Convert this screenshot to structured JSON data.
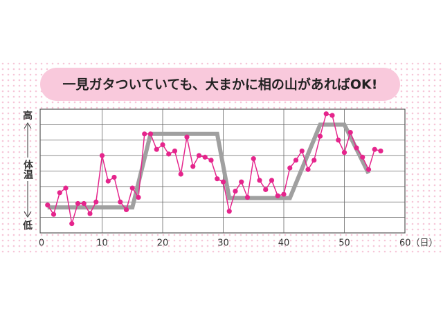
{
  "chart_data": {
    "type": "line",
    "title": "一見ガタついていても、大まかに相の山があればOK!",
    "y_label": "体温",
    "xlim": [
      0,
      60
    ],
    "xticks": [
      0,
      10,
      20,
      30,
      40,
      50,
      {
        "value": 60,
        "label": "60（日）"
      }
    ],
    "ylim": [
      0,
      8
    ],
    "yticks": [
      {
        "value": 8,
        "label": "高"
      },
      {
        "value": 0,
        "label": "低"
      }
    ],
    "ygrid": [
      1,
      2,
      3,
      4,
      5,
      6,
      7
    ],
    "grid": true,
    "series": [
      {
        "color": "#a0a0a0",
        "markers": false,
        "x": [
          1,
          15,
          18,
          29,
          31,
          41,
          46,
          50,
          54
        ],
        "values": [
          1.65,
          1.65,
          6.4,
          6.4,
          2.25,
          2.25,
          7.0,
          7.0,
          3.85
        ]
      },
      {
        "color": "#e5258c",
        "markers": true,
        "x": [
          1,
          2,
          3,
          4,
          5,
          6,
          7,
          8,
          9,
          10,
          11,
          12,
          13,
          14,
          15,
          16,
          17,
          18,
          19,
          20,
          21,
          22,
          23,
          24,
          25,
          26,
          27,
          28,
          29,
          30,
          31,
          32,
          33,
          34,
          35,
          36,
          37,
          38,
          39,
          40,
          41,
          42,
          43,
          44,
          45,
          46,
          47,
          48,
          49,
          50,
          51,
          52,
          53,
          54,
          55,
          56
        ],
        "values": [
          1.8,
          1.2,
          2.6,
          2.9,
          0.6,
          1.9,
          1.9,
          1.25,
          2.0,
          5.0,
          3.35,
          3.6,
          2.0,
          1.5,
          2.9,
          2.3,
          6.4,
          6.4,
          5.4,
          5.7,
          5.1,
          5.3,
          3.8,
          6.2,
          4.3,
          5.0,
          4.9,
          4.7,
          3.5,
          3.3,
          1.4,
          2.7,
          3.3,
          2.3,
          4.8,
          3.4,
          2.8,
          3.4,
          2.4,
          2.5,
          4.2,
          4.7,
          5.3,
          4.1,
          4.7,
          6.25,
          7.7,
          7.6,
          6.0,
          5.2,
          6.5,
          5.5,
          4.9,
          4.1,
          5.4,
          5.3
        ]
      }
    ]
  }
}
